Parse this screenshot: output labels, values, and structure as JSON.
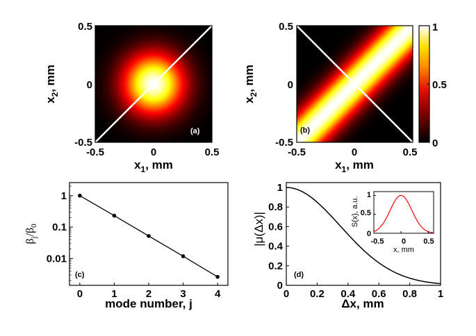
{
  "chart_data": [
    {
      "panel": "a",
      "type": "heatmap",
      "function": "exp(-(x1^2 + x2^2) / (2*0.18^2)), Gaussian centered at 0",
      "xlabel": "x",
      "xlabel_sub": "1",
      "xlabel_unit": ", mm",
      "ylabel": "x",
      "ylabel_sub": "2",
      "ylabel_unit": ", mm",
      "xlim": [
        -0.5,
        0.5
      ],
      "ylim": [
        -0.5,
        0.5
      ],
      "xticks": [
        "-0.5",
        "0",
        "0.5"
      ],
      "yticks": [
        "-0.5",
        "0",
        "0.5"
      ],
      "diagonal": "white line from (-0.5,-0.5) to (0.5,0.5)",
      "label": "(a)"
    },
    {
      "panel": "b",
      "type": "heatmap",
      "function": "exp(-(x1 - x2)^2 / (2*0.16^2)), ridge along x1 = x2",
      "xlabel": "x",
      "xlabel_sub": "1",
      "xlabel_unit": ", mm",
      "ylabel": "x",
      "ylabel_sub": "2",
      "ylabel_unit": ", mm",
      "xlim": [
        -0.5,
        0.5
      ],
      "ylim": [
        -0.5,
        0.5
      ],
      "xticks": [
        "-0.5",
        "0",
        "0.5"
      ],
      "yticks": [
        "-0.5",
        "0",
        "0.5"
      ],
      "diagonal": "white line from (-0.5,0.5) to (0.5,-0.5)",
      "colorbar": {
        "min": 0,
        "max": 1,
        "ticks": [
          "1",
          "0.5",
          "0"
        ]
      },
      "label": "(b)"
    },
    {
      "panel": "c",
      "type": "line",
      "x": [
        0,
        1,
        2,
        3,
        4
      ],
      "values": [
        1,
        0.23,
        0.052,
        0.0118,
        0.0026
      ],
      "yscale": "log",
      "xlim": [
        -0.3,
        4.3
      ],
      "ylim": [
        0.0014,
        2.6
      ],
      "xticks": [
        "0",
        "1",
        "2",
        "3",
        "4"
      ],
      "yticks": [
        {
          "v": 1,
          "t": "1"
        },
        {
          "v": 0.1,
          "t": "0.1"
        },
        {
          "v": 0.01,
          "t": "0.01"
        }
      ],
      "xlabel": "mode number, j",
      "ylabel": "β",
      "ylabel_sub1": "j",
      "ylabel_mid": "/β",
      "ylabel_sub2": "0",
      "label": "(c)"
    },
    {
      "panel": "d",
      "type": "line",
      "function": "exp(-dx^2 / (2*0.35^2))",
      "xlim": [
        0,
        1
      ],
      "ylim": [
        0,
        1.05
      ],
      "xticks": [
        "0",
        "0.2",
        "0.4",
        "0.6",
        "0.8",
        "1"
      ],
      "yticks": [
        "0",
        "0.2",
        "0.4",
        "0.6",
        "0.8",
        "1"
      ],
      "xlabel": "Δx, mm",
      "ylabel": "|μ(Δx)|",
      "label": "(d)",
      "inset": {
        "type": "line",
        "color": "#ff0000",
        "function": "exp(-x^2 / (2*0.2^2))",
        "xlim": [
          -0.5,
          0.6
        ],
        "ylim": [
          0,
          1.1
        ],
        "xticks": [
          "-0.5",
          "0",
          "0.5"
        ],
        "yticks": [
          "0",
          "0.5",
          "1"
        ],
        "xlabel": "x, mm",
        "ylabel": "S(x), a.u."
      }
    }
  ]
}
